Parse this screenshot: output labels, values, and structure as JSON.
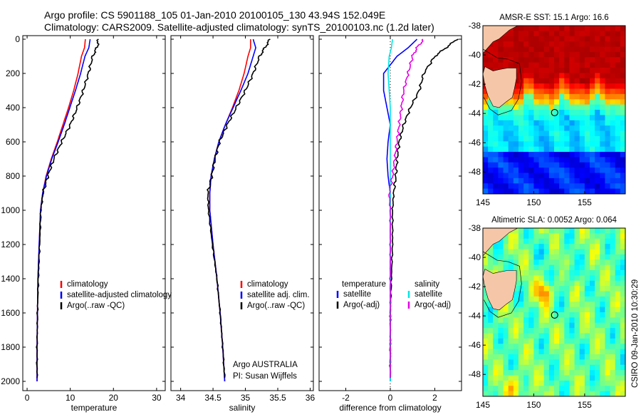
{
  "header": {
    "line1": "Argo profile: CS 5901188_105 01-Jan-2010 20100105_130 43.94S 152.049E",
    "line2": "Climatology: CARS2009. Satellite-adjusted climatology: synTS_20100103.nc (1.2d later)"
  },
  "credit": "CSIRO 09-Jan-2010 10:30:29",
  "colors": {
    "climatology": "#ff0000",
    "satellite": "#0000ff",
    "argo": "#000000",
    "salinity_satellite": "#00e5e5",
    "salinity_argo": "#e600e6",
    "land": "#f5c7a8"
  },
  "depth_axis": {
    "ylim": [
      2000,
      0
    ],
    "ticks": [
      0,
      200,
      400,
      600,
      800,
      1000,
      1200,
      1400,
      1600,
      1800,
      2000
    ]
  },
  "chart_data": [
    {
      "type": "line",
      "id": "temperature",
      "xlabel": "temperature",
      "xlim": [
        -1,
        32
      ],
      "xticks": [
        0,
        10,
        20,
        30
      ],
      "legend": [
        "climatology",
        "satellite-adjusted climatology",
        "Argo(..raw -QC)"
      ],
      "series": [
        {
          "name": "climatology",
          "color": "#ff0000",
          "x": [
            13.5,
            13.3,
            12.6,
            11.8,
            10.8,
            9.6,
            8.3,
            7.0,
            5.6,
            4.4,
            3.6,
            3.1,
            2.8,
            2.5,
            2.4,
            2.3,
            2.3
          ],
          "y": [
            0,
            50,
            100,
            200,
            300,
            400,
            500,
            600,
            700,
            800,
            900,
            1000,
            1200,
            1400,
            1600,
            1800,
            2000
          ]
        },
        {
          "name": "satellite-adjusted climatology",
          "color": "#0000ff",
          "x": [
            14.6,
            14.3,
            13.4,
            12.4,
            11.2,
            9.9,
            8.6,
            7.2,
            5.7,
            4.5,
            3.6,
            3.1,
            2.8,
            2.5,
            2.4,
            2.3,
            2.3
          ],
          "y": [
            0,
            50,
            100,
            200,
            300,
            400,
            500,
            600,
            700,
            800,
            900,
            1000,
            1200,
            1400,
            1600,
            1800,
            2000
          ]
        },
        {
          "name": "Argo(..raw -QC)",
          "color": "#000000",
          "x": [
            16.5,
            16.3,
            15.2,
            14.2,
            13.0,
            11.6,
            10.0,
            8.0,
            6.2,
            4.8,
            3.7,
            3.2,
            2.9,
            2.6,
            2.4,
            2.3,
            2.3
          ],
          "y": [
            0,
            40,
            100,
            200,
            300,
            400,
            500,
            600,
            700,
            800,
            900,
            1000,
            1200,
            1400,
            1600,
            1800,
            1980
          ]
        }
      ]
    },
    {
      "type": "line",
      "id": "salinity",
      "xlabel": "salinity",
      "xlim": [
        33.85,
        36.05
      ],
      "xticks": [
        34,
        34.5,
        35,
        35.5,
        36
      ],
      "legend": [
        "climatology",
        "satellite adj. clim.",
        "Argo(..raw -QC)"
      ],
      "annotation": [
        "Argo AUSTRALIA",
        "PI: Susan Wijffels"
      ],
      "series": [
        {
          "name": "climatology",
          "color": "#ff0000",
          "x": [
            35.08,
            35.08,
            35.04,
            34.98,
            34.9,
            34.8,
            34.69,
            34.59,
            34.52,
            34.47,
            34.45,
            34.45,
            34.5,
            34.56,
            34.61,
            34.65,
            34.68
          ],
          "y": [
            0,
            50,
            100,
            200,
            300,
            400,
            500,
            600,
            700,
            800,
            900,
            1000,
            1200,
            1400,
            1600,
            1800,
            2000
          ]
        },
        {
          "name": "satellite adj. clim.",
          "color": "#0000ff",
          "x": [
            35.12,
            35.16,
            35.12,
            35.04,
            34.93,
            34.81,
            34.69,
            34.59,
            34.52,
            34.47,
            34.45,
            34.45,
            34.5,
            34.56,
            34.61,
            34.65,
            34.68
          ],
          "y": [
            0,
            50,
            100,
            200,
            300,
            400,
            500,
            600,
            700,
            800,
            900,
            1000,
            1200,
            1400,
            1600,
            1800,
            2000
          ]
        },
        {
          "name": "Argo(..raw -QC)",
          "color": "#000000",
          "x": [
            35.38,
            35.3,
            35.22,
            35.12,
            35.0,
            34.86,
            34.72,
            34.6,
            34.53,
            34.48,
            34.42,
            34.43,
            34.49,
            34.56,
            34.61,
            34.65,
            34.68
          ],
          "y": [
            0,
            50,
            100,
            200,
            300,
            400,
            500,
            600,
            700,
            800,
            900,
            1000,
            1200,
            1400,
            1600,
            1800,
            1980
          ]
        }
      ]
    },
    {
      "type": "line",
      "id": "difference",
      "xlabel": "difference from climatology",
      "xlim": [
        -3.2,
        3.2
      ],
      "xticks": [
        -2,
        0,
        2
      ],
      "zero_line": 0,
      "legend": {
        "temperature": [
          "temperature",
          "satellite",
          "Argo(-adj)"
        ],
        "salinity": [
          "salinity",
          "satellite",
          "Argo(-adj)"
        ]
      },
      "series": [
        {
          "name": "temperature satellite",
          "color": "#0000ff",
          "x": [
            1.2,
            0.8,
            0.3,
            -0.3,
            -0.3,
            -0.15,
            0.0,
            -0.1,
            -0.15,
            -0.1,
            0.0,
            0.0,
            0.0,
            0.0,
            0.0,
            0.0,
            0.0
          ],
          "y": [
            0,
            50,
            100,
            200,
            300,
            400,
            500,
            600,
            700,
            800,
            900,
            1000,
            1200,
            1400,
            1600,
            1800,
            2000
          ]
        },
        {
          "name": "temperature Argo(-adj)",
          "color": "#000000",
          "x": [
            3.0,
            2.5,
            2.0,
            1.5,
            1.3,
            0.9,
            0.6,
            0.4,
            0.3,
            0.25,
            0.15,
            0.1,
            0.1,
            0.05,
            0.0,
            0.0,
            0.0
          ],
          "y": [
            0,
            50,
            100,
            200,
            300,
            400,
            500,
            600,
            700,
            800,
            900,
            1000,
            1200,
            1400,
            1600,
            1800,
            1980
          ]
        },
        {
          "name": "salinity satellite",
          "color": "#00e5e5",
          "x": [
            0.1,
            0.05,
            -0.05,
            -0.1,
            -0.05,
            0.0,
            0.0,
            0.0,
            0.0,
            0.0,
            0.0,
            0.0,
            0.0,
            0.0,
            0.0,
            0.0,
            0.0
          ],
          "y": [
            0,
            50,
            100,
            200,
            300,
            400,
            500,
            600,
            700,
            800,
            900,
            1000,
            1200,
            1400,
            1600,
            1800,
            2000
          ]
        },
        {
          "name": "salinity Argo(-adj)",
          "color": "#e600e6",
          "x": [
            1.5,
            1.2,
            1.0,
            0.8,
            0.6,
            0.5,
            0.4,
            0.3,
            0.2,
            0.1,
            -0.05,
            0.0,
            0.0,
            0.0,
            0.0,
            0.0,
            0.0
          ],
          "y": [
            0,
            50,
            100,
            200,
            300,
            400,
            500,
            600,
            700,
            800,
            900,
            1000,
            1200,
            1400,
            1600,
            1800,
            1980
          ]
        }
      ]
    },
    {
      "type": "heatmap",
      "id": "sst-map",
      "title": "AMSR-E SST: 15.1 Argo: 16.6",
      "xlim": [
        145,
        159
      ],
      "ylim": [
        -49.5,
        -38
      ],
      "xticks": [
        145,
        150,
        155
      ],
      "yticks": [
        -38,
        -40,
        -42,
        -44,
        -46,
        -48
      ],
      "float_position": {
        "lon": 152.049,
        "lat": -43.94
      },
      "colormap": "jet"
    },
    {
      "type": "heatmap",
      "id": "sla-map",
      "title": "Altimetric SLA: 0.0052 Argo: 0.064",
      "xlim": [
        145,
        159
      ],
      "ylim": [
        -49.5,
        -38
      ],
      "xticks": [
        145,
        150,
        155
      ],
      "yticks": [
        -38,
        -40,
        -42,
        -44,
        -46,
        -48
      ],
      "float_position": {
        "lon": 152.049,
        "lat": -43.94
      },
      "colormap": "jet"
    }
  ]
}
